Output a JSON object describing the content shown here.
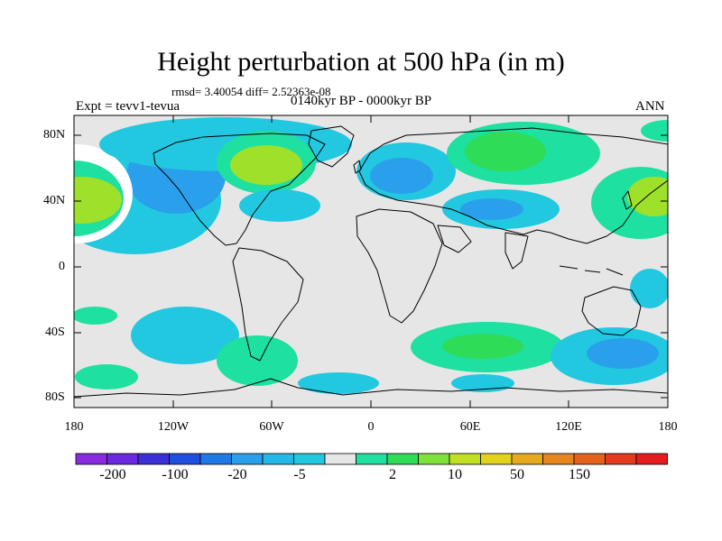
{
  "header": {
    "title": "Height perturbation at 500 hPa (in m)",
    "stats": "rmsd= 3.40054 diff= 2.52363e-08",
    "experiment": "Expt = tevv1-tevua",
    "period": "0140kyr BP - 0000kyr BP",
    "season": "ANN"
  },
  "axes": {
    "y_ticks": [
      "80N",
      "40N",
      "0",
      "40S",
      "80S"
    ],
    "x_ticks": [
      "180",
      "120W",
      "60W",
      "0",
      "60E",
      "120E",
      "180"
    ]
  },
  "colorbar": {
    "colors": [
      "#8a2be2",
      "#6a28e0",
      "#3b2fd8",
      "#1f4fe0",
      "#1f78e8",
      "#2aa0ec",
      "#22b8e8",
      "#22c8e0",
      "#e6e6e6",
      "#1ee0a0",
      "#2edc58",
      "#7ee23a",
      "#c2e022",
      "#e2d21a",
      "#e6aa1c",
      "#e6861c",
      "#e6621c",
      "#e63a1c",
      "#e61c1c"
    ],
    "labels": [
      "-200",
      "-100",
      "-20",
      "-5",
      "2",
      "10",
      "50",
      "150"
    ]
  },
  "legend_colors": {
    "neutral": "#e6e6e6",
    "blue_weak": "#22c8e0",
    "blue_mid": "#2aa0ec",
    "blue_strong": "#1f78e8",
    "green_weak": "#1ee0a0",
    "green_mid": "#2edc58",
    "green_strong": "#9ee02a"
  }
}
